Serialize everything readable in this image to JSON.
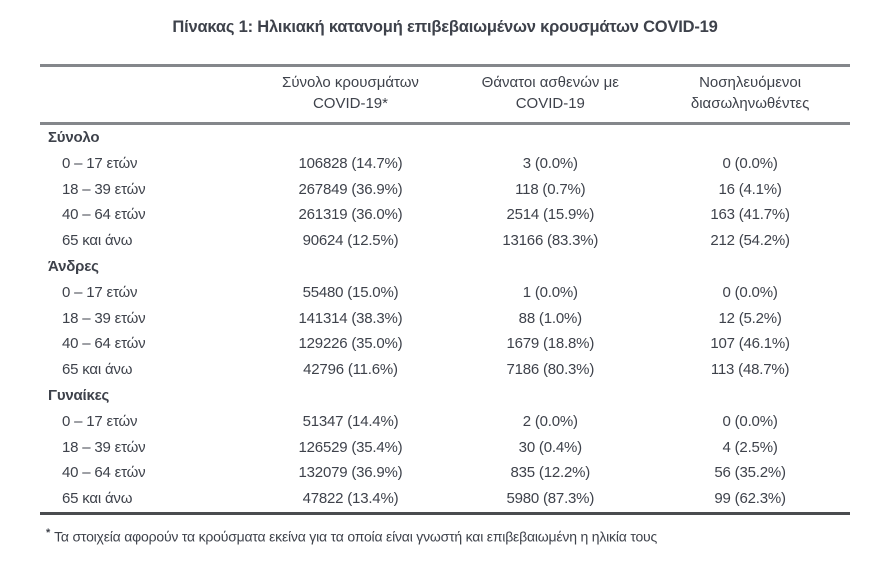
{
  "page": {
    "title": "Πίνακας 1: Ηλικιακή κατανομή επιβεβαιωμένων κρουσμάτων COVID-19",
    "footnote": {
      "marker": "*",
      "text": "Τα στοιχεία αφορούν τα κρούσματα εκείνα για τα οποία είναι γνωστή και επιβεβαιωμένη η ηλικία τους"
    }
  },
  "table": {
    "columns": [
      {
        "line1": "Σύνολο κρουσμάτων",
        "line2": "COVID-19*"
      },
      {
        "line1": "Θάνατοι ασθενών με",
        "line2": "COVID-19"
      },
      {
        "line1": "Νοσηλευόμενοι",
        "line2": "διασωληνωθέντες"
      }
    ],
    "groups": [
      {
        "label": "Σύνολο",
        "rows": [
          {
            "age": "0 – 17 ετών",
            "cases": "106828 (14.7%)",
            "deaths": "3 (0.0%)",
            "intubated": "0 (0.0%)"
          },
          {
            "age": "18 – 39 ετών",
            "cases": "267849 (36.9%)",
            "deaths": "118 (0.7%)",
            "intubated": "16 (4.1%)"
          },
          {
            "age": "40 – 64 ετών",
            "cases": "261319 (36.0%)",
            "deaths": "2514 (15.9%)",
            "intubated": "163 (41.7%)"
          },
          {
            "age": "65 και άνω",
            "cases": "90624 (12.5%)",
            "deaths": "13166 (83.3%)",
            "intubated": "212 (54.2%)"
          }
        ]
      },
      {
        "label": "Άνδρες",
        "rows": [
          {
            "age": "0 – 17 ετών",
            "cases": "55480 (15.0%)",
            "deaths": "1 (0.0%)",
            "intubated": "0 (0.0%)"
          },
          {
            "age": "18 – 39 ετών",
            "cases": "141314 (38.3%)",
            "deaths": "88 (1.0%)",
            "intubated": "12 (5.2%)"
          },
          {
            "age": "40 – 64 ετών",
            "cases": "129226 (35.0%)",
            "deaths": "1679 (18.8%)",
            "intubated": "107 (46.1%)"
          },
          {
            "age": "65 και άνω",
            "cases": "42796 (11.6%)",
            "deaths": "7186 (80.3%)",
            "intubated": "113 (48.7%)"
          }
        ]
      },
      {
        "label": "Γυναίκες",
        "rows": [
          {
            "age": "0 – 17 ετών",
            "cases": "51347 (14.4%)",
            "deaths": "2 (0.0%)",
            "intubated": "0 (0.0%)"
          },
          {
            "age": "18 – 39 ετών",
            "cases": "126529 (35.4%)",
            "deaths": "30 (0.4%)",
            "intubated": "4 (2.5%)"
          },
          {
            "age": "40 – 64 ετών",
            "cases": "132079 (36.9%)",
            "deaths": "835 (12.2%)",
            "intubated": "56 (35.2%)"
          },
          {
            "age": "65 και άνω",
            "cases": "47822 (13.4%)",
            "deaths": "5980 (87.3%)",
            "intubated": "99 (62.3%)"
          }
        ]
      }
    ]
  },
  "colors": {
    "text": "#3e424b",
    "border_light": "#84878b",
    "border_dark": "#4a4c4f",
    "background": "#ffffff"
  }
}
